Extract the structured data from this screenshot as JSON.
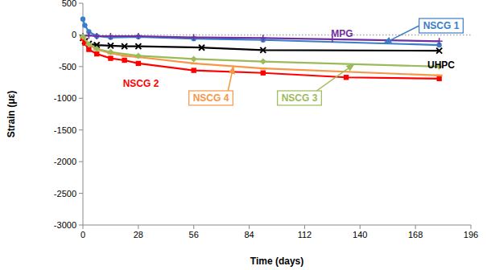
{
  "chart_data": {
    "type": "line",
    "x_label": "Time (days)",
    "y_label": "Strain (με)",
    "xlim": [
      0,
      196
    ],
    "xticks": [
      0,
      28,
      56,
      84,
      112,
      140,
      168,
      196
    ],
    "ylim": [
      -3000,
      500
    ],
    "yticks": [
      500,
      0,
      -500,
      -1000,
      -1500,
      -2000,
      -2500,
      -3000
    ],
    "grid": false,
    "series": [
      {
        "name": "NSCG 1",
        "color": "#3a7dc9",
        "marker": "circle",
        "x": [
          0,
          1,
          3,
          7,
          14,
          28,
          56,
          91,
          180
        ],
        "values": [
          250,
          150,
          50,
          -20,
          -40,
          -30,
          -60,
          -80,
          -160
        ]
      },
      {
        "name": "MPG",
        "color": "#7030a0",
        "marker": "plus",
        "x": [
          0,
          3,
          7,
          14,
          28,
          56,
          91,
          126,
          180
        ],
        "values": [
          -20,
          -10,
          -20,
          -20,
          -20,
          -40,
          -50,
          -70,
          -100
        ]
      },
      {
        "name": "UHPC",
        "color": "#000000",
        "marker": "x",
        "x": [
          0,
          1,
          3,
          7,
          14,
          21,
          28,
          60,
          91,
          180
        ],
        "values": [
          -50,
          -100,
          -140,
          -160,
          -170,
          -180,
          -180,
          -200,
          -240,
          -250
        ]
      },
      {
        "name": "NSCG 2",
        "color": "#ff0000",
        "marker": "square",
        "x": [
          0,
          1,
          3,
          7,
          14,
          21,
          28,
          56,
          91,
          133,
          180
        ],
        "values": [
          -50,
          -130,
          -230,
          -300,
          -370,
          -400,
          -450,
          -560,
          -600,
          -670,
          -690
        ]
      },
      {
        "name": "NSCG 4",
        "color": "#f79646",
        "marker": "dash",
        "x": [
          0,
          3,
          7,
          14,
          21,
          28,
          56,
          91,
          180
        ],
        "values": [
          -30,
          -150,
          -230,
          -290,
          -330,
          -350,
          -450,
          -530,
          -640
        ]
      },
      {
        "name": "NSCG 3",
        "color": "#9bbb59",
        "marker": "diamond",
        "x": [
          0,
          3,
          7,
          14,
          28,
          56,
          91,
          180
        ],
        "values": [
          -30,
          -150,
          -220,
          -270,
          -330,
          -380,
          -420,
          -500
        ]
      }
    ]
  }
}
